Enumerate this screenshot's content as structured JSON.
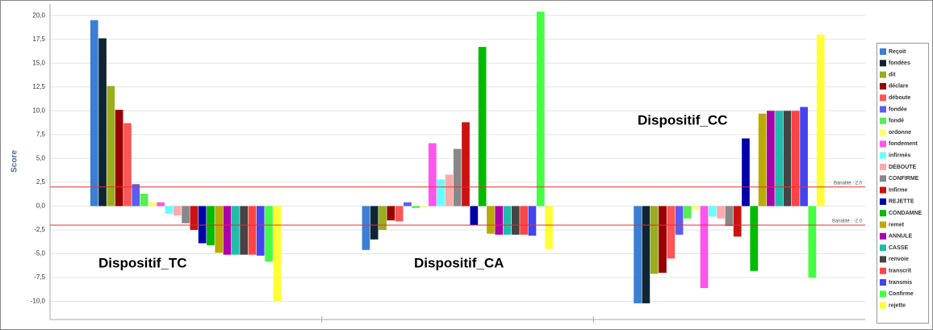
{
  "chart_data": {
    "type": "bar",
    "ylabel": "Score",
    "categories": [
      "Dispositif_TC",
      "Dispositif_CA",
      "Dispositif_CC"
    ],
    "ylim": [
      -11.9,
      21.2
    ],
    "yticks": [
      {
        "value": -10,
        "label": "-10,0"
      },
      {
        "value": -7.5,
        "label": "-7,5"
      },
      {
        "value": -5,
        "label": "-5,0"
      },
      {
        "value": -2.5,
        "label": "-2,5"
      },
      {
        "value": 0,
        "label": "0,0"
      },
      {
        "value": 2.5,
        "label": "2,5"
      },
      {
        "value": 5,
        "label": "5,0"
      },
      {
        "value": 7.5,
        "label": "7,5"
      },
      {
        "value": 10,
        "label": "10,0"
      },
      {
        "value": 12.5,
        "label": "12,5"
      },
      {
        "value": 15,
        "label": "15,0"
      },
      {
        "value": 17.5,
        "label": "17,5"
      },
      {
        "value": 20,
        "label": "20,0"
      }
    ],
    "grid": true,
    "legend": "right",
    "reference_lines": [
      {
        "value": 2,
        "label": "Banalité : 2.0",
        "color": "#e03030"
      },
      {
        "value": -2,
        "label": "Banalité : -2.0",
        "color": "#e03030"
      }
    ],
    "series": [
      {
        "name": "Reçoit",
        "color": "#3a7fd5",
        "values": [
          19.5,
          -4.6,
          -10.2
        ]
      },
      {
        "name": "fondées",
        "color": "#0f2533",
        "values": [
          17.6,
          -3.5,
          -10.2
        ]
      },
      {
        "name": "dit",
        "color": "#9aad1c",
        "values": [
          12.6,
          -2.5,
          -7.1
        ]
      },
      {
        "name": "déclare",
        "color": "#990000",
        "values": [
          10.1,
          -1.5,
          -7.0
        ]
      },
      {
        "name": "déboute",
        "color": "#ff5555",
        "values": [
          8.7,
          -1.6,
          -5.5
        ]
      },
      {
        "name": "fondée",
        "color": "#5c5cf0",
        "values": [
          2.3,
          0.4,
          -3.0
        ]
      },
      {
        "name": "fondé",
        "color": "#55ee55",
        "values": [
          1.3,
          -0.2,
          -1.3
        ]
      },
      {
        "name": "ordonne",
        "color": "#ffff66",
        "values": [
          0.4,
          -0.1,
          -0.3
        ]
      },
      {
        "name": "fondement",
        "color": "#ff55ee",
        "values": [
          0.4,
          6.6,
          -8.6
        ]
      },
      {
        "name": "infirmés",
        "color": "#66ffff",
        "values": [
          -0.8,
          2.8,
          -1.1
        ]
      },
      {
        "name": "DÉBOUTE",
        "color": "#ffaaaa",
        "values": [
          -1.0,
          3.3,
          -1.3
        ]
      },
      {
        "name": "CONFIRME",
        "color": "#888888",
        "values": [
          -1.8,
          6.0,
          -2.1
        ]
      },
      {
        "name": "Infirme",
        "color": "#cc1111",
        "values": [
          -2.5,
          8.8,
          -3.2
        ]
      },
      {
        "name": "REJETTE",
        "color": "#0000aa",
        "values": [
          -3.9,
          -2.0,
          7.1
        ]
      },
      {
        "name": "CONDAMNE",
        "color": "#00bb00",
        "values": [
          -4.1,
          16.7,
          -6.8
        ]
      },
      {
        "name": "remet",
        "color": "#bbaa00",
        "values": [
          -4.9,
          -2.9,
          9.7
        ]
      },
      {
        "name": "ANNULE",
        "color": "#aa00aa",
        "values": [
          -5.1,
          -3.0,
          10.0
        ]
      },
      {
        "name": "CASSE",
        "color": "#22bbaa",
        "values": [
          -5.1,
          -3.0,
          10.0
        ]
      },
      {
        "name": "renvoie",
        "color": "#444444",
        "values": [
          -5.1,
          -3.0,
          10.0
        ]
      },
      {
        "name": "transcrit",
        "color": "#ff4444",
        "values": [
          -5.1,
          -3.0,
          10.0
        ]
      },
      {
        "name": "transmis",
        "color": "#4444ee",
        "values": [
          -5.2,
          -3.1,
          10.4
        ]
      },
      {
        "name": "Confirme",
        "color": "#44ff44",
        "values": [
          -5.8,
          20.4,
          -7.5
        ]
      },
      {
        "name": "rejette",
        "color": "#ffff33",
        "values": [
          -10.0,
          -4.5,
          18.0
        ]
      }
    ]
  }
}
